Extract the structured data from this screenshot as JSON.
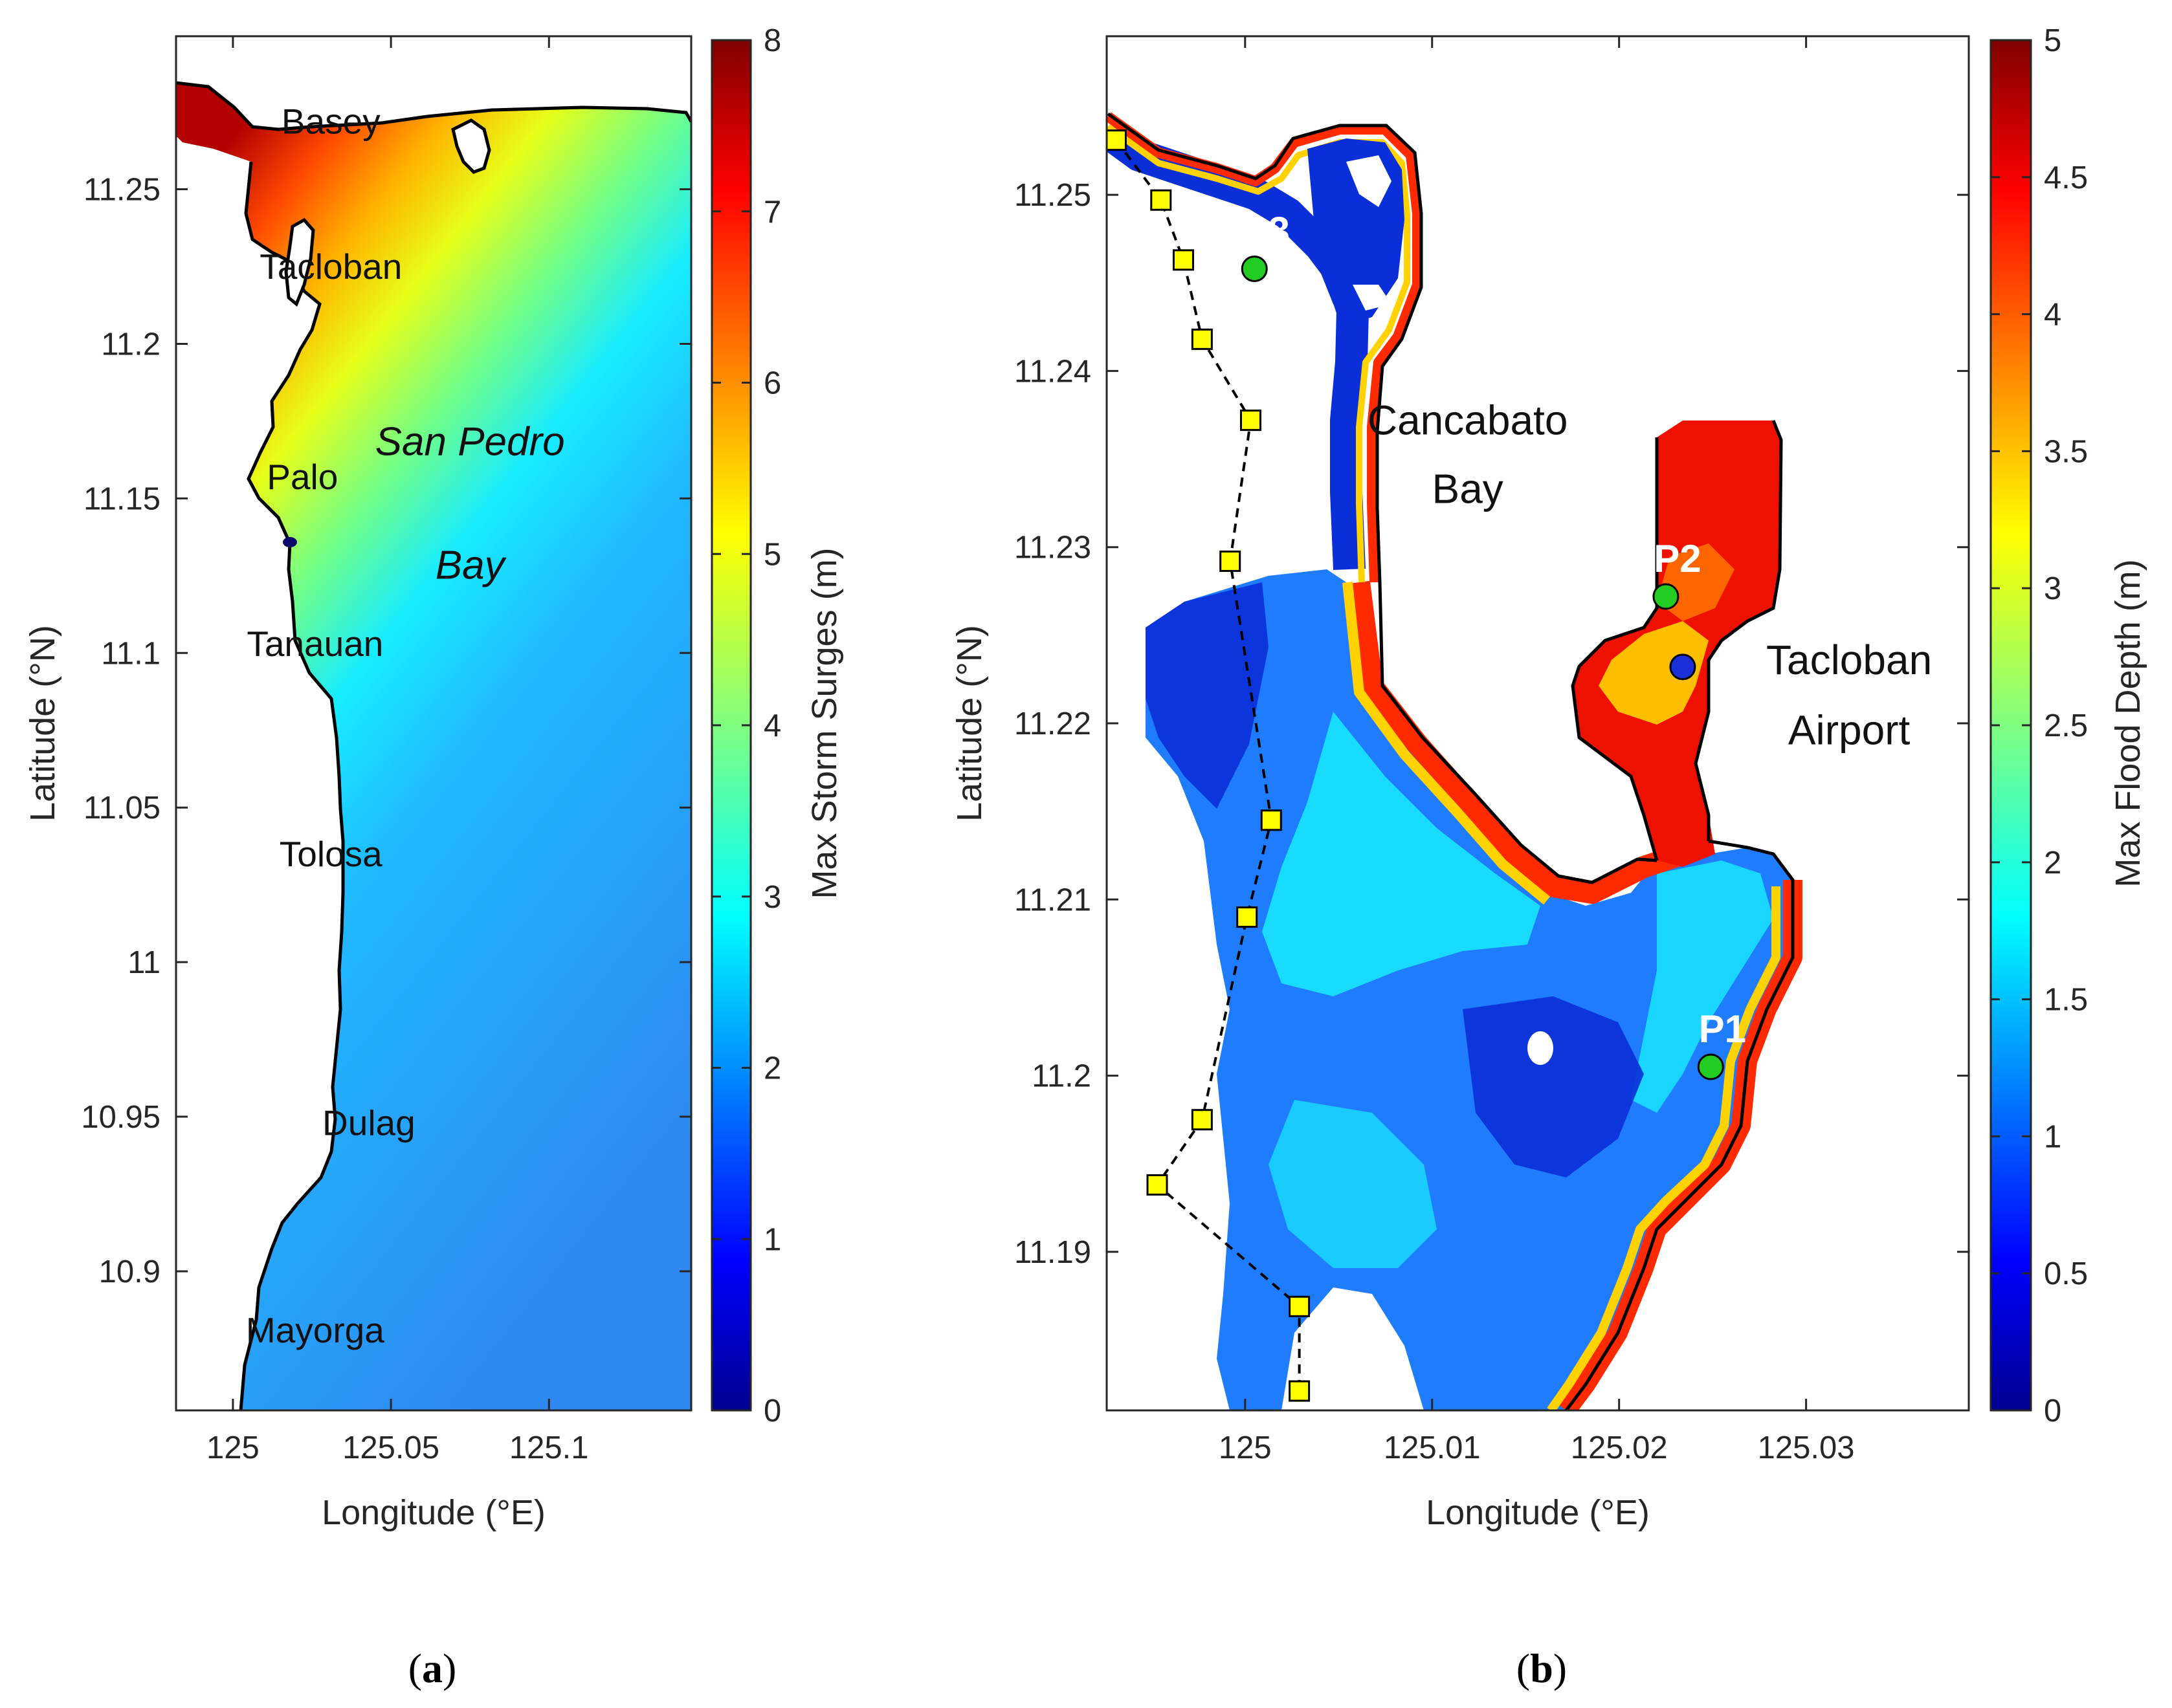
{
  "chart_data": [
    {
      "type": "heatmap",
      "panel_label": "a",
      "title": "",
      "xlabel": "Longitude (°E)",
      "ylabel": "Latitude (°N)",
      "xlim": [
        124.982,
        125.145
      ],
      "ylim": [
        10.855,
        11.2995
      ],
      "xticks": [
        {
          "value": 125.0,
          "label": "125"
        },
        {
          "value": 125.05,
          "label": "125.05"
        },
        {
          "value": 125.1,
          "label": "125.1"
        }
      ],
      "yticks": [
        {
          "value": 11.25,
          "label": "11.25"
        },
        {
          "value": 11.2,
          "label": "11.2"
        },
        {
          "value": 11.15,
          "label": "11.15"
        },
        {
          "value": 11.1,
          "label": "11.1"
        },
        {
          "value": 11.05,
          "label": "11.05"
        },
        {
          "value": 11.0,
          "label": "11"
        },
        {
          "value": 10.95,
          "label": "10.95"
        },
        {
          "value": 10.9,
          "label": "10.9"
        }
      ],
      "colorbar": {
        "label": "Max Storm Surges (m)",
        "min": 0,
        "max": 8,
        "ticks": [
          "0",
          "1",
          "2",
          "3",
          "4",
          "5",
          "6",
          "7",
          "8"
        ],
        "colormap": "jet"
      },
      "approx_field": {
        "description_values": "surge increases toward the north-west shore",
        "north_coast_max": 7.5,
        "south_min": 1.7
      },
      "annotations": [
        {
          "text": "Basey",
          "lon": 125.031,
          "lat": 11.268
        },
        {
          "text": "Tacloban",
          "lon": 125.031,
          "lat": 11.221
        },
        {
          "text": "Palo",
          "lon": 125.022,
          "lat": 11.153
        },
        {
          "text": "Tanauan",
          "lon": 125.026,
          "lat": 11.099
        },
        {
          "text": "Tolosa",
          "lon": 125.031,
          "lat": 11.031
        },
        {
          "text": "Dulag",
          "lon": 125.043,
          "lat": 10.944
        },
        {
          "text": "Mayorga",
          "lon": 125.026,
          "lat": 10.877
        },
        {
          "text": "San  Pedro",
          "lon": 125.075,
          "lat": 11.164,
          "style": "italic"
        },
        {
          "text": "Bay",
          "lon": 125.075,
          "lat": 11.124,
          "style": "italic"
        }
      ]
    },
    {
      "type": "heatmap",
      "panel_label": "b",
      "title": "",
      "xlabel": "Longitude (°E)",
      "ylabel": "Latitude (°N)",
      "xlim": [
        124.9926,
        125.0387
      ],
      "ylim": [
        11.181,
        11.259
      ],
      "xticks": [
        {
          "value": 125.0,
          "label": "125"
        },
        {
          "value": 125.01,
          "label": "125.01"
        },
        {
          "value": 125.02,
          "label": "125.02"
        },
        {
          "value": 125.03,
          "label": "125.03"
        }
      ],
      "yticks": [
        {
          "value": 11.25,
          "label": "11.25"
        },
        {
          "value": 11.24,
          "label": "11.24"
        },
        {
          "value": 11.23,
          "label": "11.23"
        },
        {
          "value": 11.22,
          "label": "11.22"
        },
        {
          "value": 11.21,
          "label": "11.21"
        },
        {
          "value": 11.2,
          "label": "11.2"
        },
        {
          "value": 11.19,
          "label": "11.19"
        }
      ],
      "colorbar": {
        "label": "Max Flood Depth (m)",
        "min": 0,
        "max": 5,
        "ticks": [
          "0",
          "0.5",
          "1",
          "1.5",
          "2",
          "2.5",
          "3",
          "3.5",
          "4",
          "4.5",
          "5"
        ],
        "colormap": "jet"
      },
      "points": [
        {
          "name": "P1",
          "lon": 125.0249,
          "lat": 11.2005,
          "color": "#22cc22"
        },
        {
          "name": "P2",
          "lon": 125.0225,
          "lat": 11.2272,
          "color": "#22cc22"
        },
        {
          "name": "P3",
          "lon": 125.0005,
          "lat": 11.2458,
          "color": "#22cc22"
        },
        {
          "name": "",
          "lon": 125.0234,
          "lat": 11.2232,
          "color": "#1a2fd6"
        }
      ],
      "transect": [
        {
          "lon": 124.9931,
          "lat": 11.2531
        },
        {
          "lon": 124.9955,
          "lat": 11.2497
        },
        {
          "lon": 124.9967,
          "lat": 11.2463
        },
        {
          "lon": 124.9977,
          "lat": 11.2418
        },
        {
          "lon": 125.0003,
          "lat": 11.2372
        },
        {
          "lon": 124.9992,
          "lat": 11.2292
        },
        {
          "lon": 125.0014,
          "lat": 11.2145
        },
        {
          "lon": 125.0001,
          "lat": 11.209
        },
        {
          "lon": 124.9977,
          "lat": 11.1975
        },
        {
          "lon": 124.9953,
          "lat": 11.1938
        },
        {
          "lon": 125.0029,
          "lat": 11.1869
        },
        {
          "lon": 125.0029,
          "lat": 11.1821
        }
      ],
      "annotations": [
        {
          "text": "Cancabato",
          "lon": 125.0119,
          "lat": 11.2364
        },
        {
          "text": "Bay",
          "lon": 125.0119,
          "lat": 11.2325
        },
        {
          "text": "Tacloban",
          "lon": 125.0323,
          "lat": 11.2228
        },
        {
          "text": "Airport",
          "lon": 125.0323,
          "lat": 11.2188
        }
      ]
    }
  ]
}
